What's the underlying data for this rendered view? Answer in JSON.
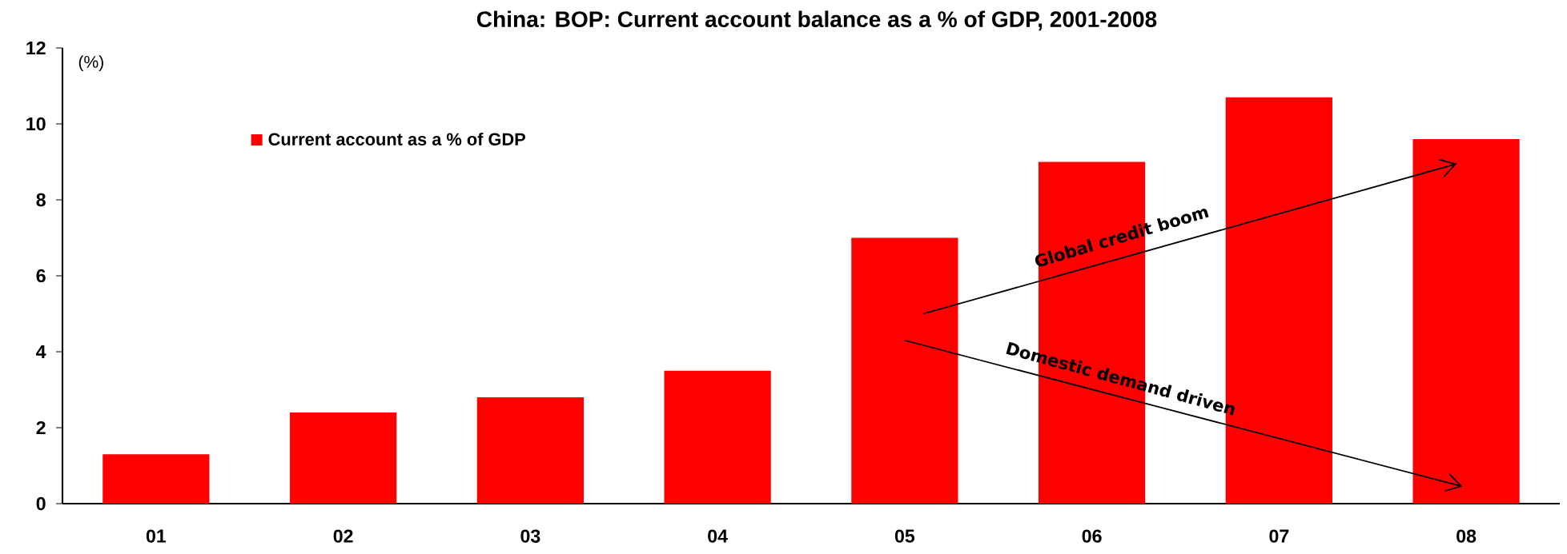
{
  "chart_data": {
    "type": "bar",
    "title": "China: BOP: Current account balance as a % of GDP, 2001-2008",
    "ylabel": "(%)",
    "categories": [
      "01",
      "02",
      "03",
      "04",
      "05",
      "06",
      "07",
      "08"
    ],
    "series": [
      {
        "name": "Current account as a % of GDP",
        "color": "#ff0000",
        "values": [
          1.3,
          2.4,
          2.8,
          3.5,
          7.0,
          9.0,
          10.7,
          9.6
        ]
      }
    ],
    "ylim": [
      0,
      12
    ],
    "yticks": [
      0,
      2,
      4,
      6,
      8,
      10,
      12
    ],
    "grid": false,
    "legend": "top left",
    "annotations": [
      "Global credit boom",
      "Domestic demand driven"
    ]
  }
}
